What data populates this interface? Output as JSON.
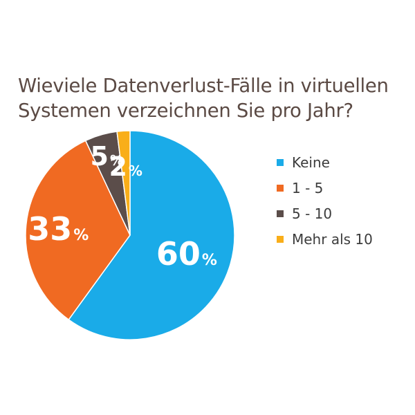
{
  "chart_data": {
    "type": "pie",
    "title": [
      "Wieviele Datenverlust-Fälle in virtuellen",
      "Systemen verzeichnen Sie pro Jahr?"
    ],
    "unit": "%",
    "slices": [
      {
        "label": "Keine",
        "value": 60,
        "color": "#1aabe8"
      },
      {
        "label": "1 - 5",
        "value": 33,
        "color": "#f06a22"
      },
      {
        "label": "5 - 10",
        "value": 5,
        "color": "#5b4d4a"
      },
      {
        "label": "Mehr als 10",
        "value": 2,
        "color": "#f9ae19"
      }
    ],
    "legend_position": "right"
  }
}
